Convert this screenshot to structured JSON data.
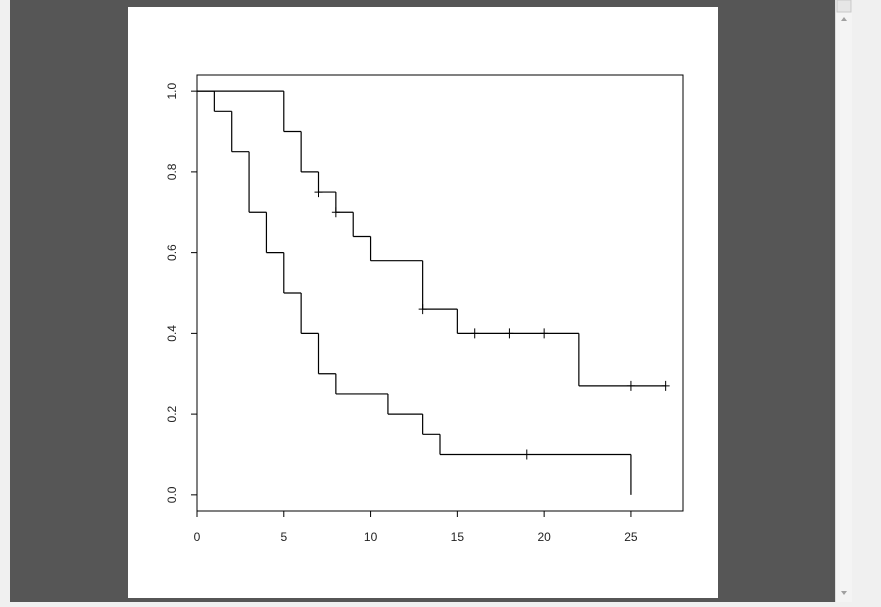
{
  "chart_data": {
    "type": "step",
    "xlim": [
      0,
      28
    ],
    "ylim": [
      -0.04,
      1.04
    ],
    "xticks": [
      0,
      5,
      10,
      15,
      20,
      25
    ],
    "yticks": [
      {
        "value": 0,
        "label": "0.0"
      },
      0.2,
      0.4,
      0.6,
      0.8,
      {
        "value": 1,
        "label": "1.0"
      }
    ],
    "color": "#000000",
    "series": [
      {
        "x": [
          0,
          1,
          2,
          3,
          4,
          5,
          6,
          7,
          8,
          11,
          13,
          14,
          25
        ],
        "values": [
          1,
          0.95,
          0.85,
          0.7,
          0.6,
          0.5,
          0.4,
          0.3,
          0.25,
          0.2,
          0.15,
          0.1,
          0
        ],
        "censor_x": [
          19
        ],
        "censor_values": [
          0.1
        ]
      },
      {
        "x": [
          0,
          5,
          6,
          7,
          8,
          9,
          10,
          13,
          15,
          22,
          27
        ],
        "values": [
          1,
          0.9,
          0.8,
          0.75,
          0.7,
          0.64,
          0.58,
          0.46,
          0.4,
          0.27,
          0.27
        ],
        "censor_x": [
          7,
          8,
          13,
          16,
          18,
          20,
          25,
          27
        ],
        "censor_values": [
          0.75,
          0.7,
          0.46,
          0.4,
          0.4,
          0.4,
          0.27,
          0.27
        ]
      }
    ]
  }
}
